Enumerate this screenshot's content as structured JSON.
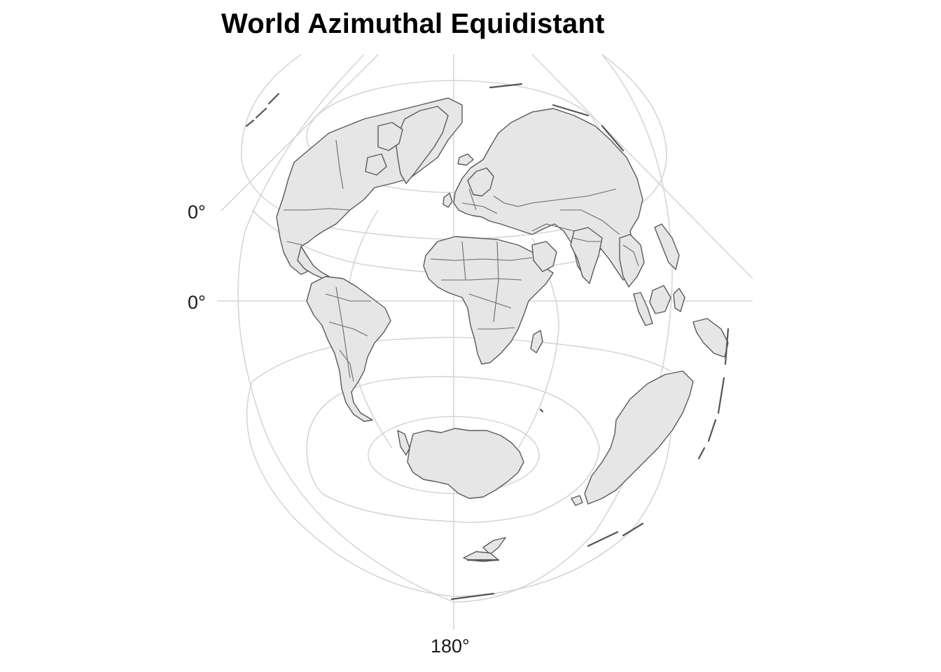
{
  "map": {
    "title": "World Azimuthal Equidistant",
    "projection": "azimuthal equidistant",
    "graticule_color": "#d6d6d6",
    "land_fill": "#e6e6e6",
    "border_color": "#5a5a5a",
    "axis_labels": {
      "y_upper": "0°",
      "y_lower": "0°",
      "x_bottom": "180°"
    }
  }
}
